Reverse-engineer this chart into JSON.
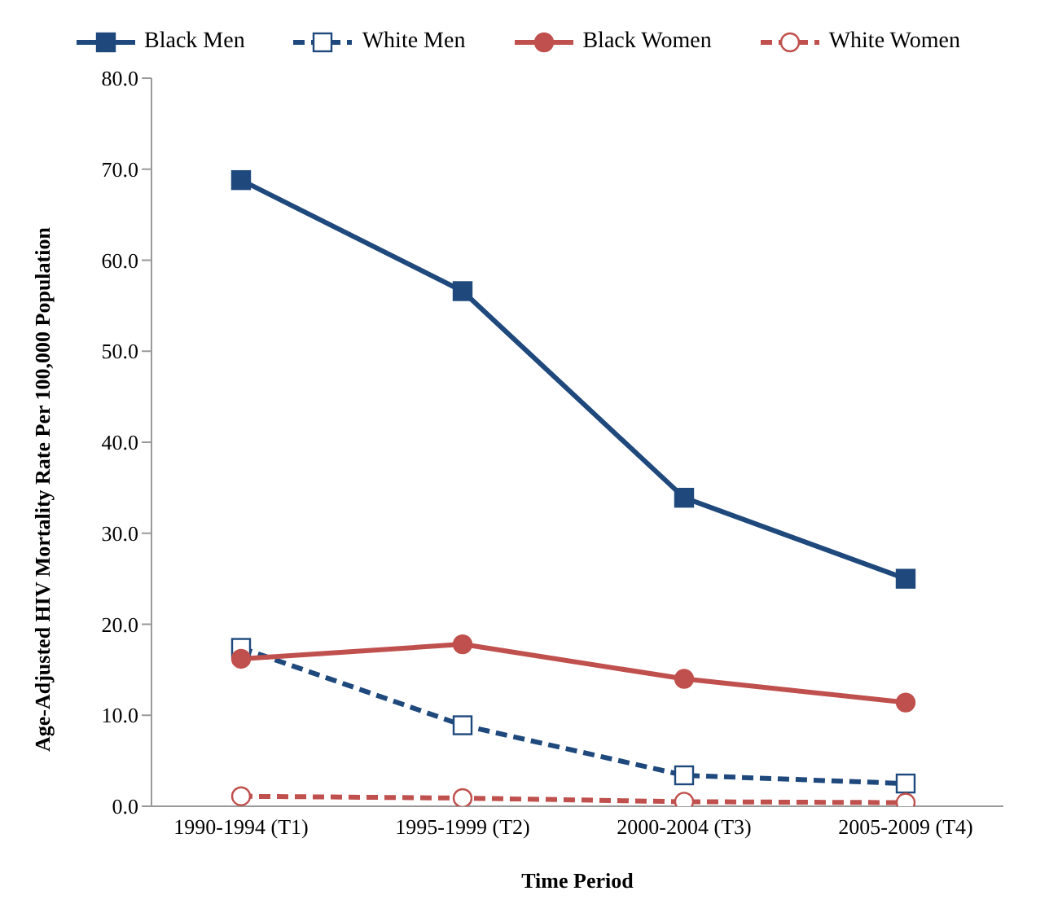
{
  "chart_data": {
    "type": "line",
    "xlabel": "Time Period",
    "ylabel": "Age-Adjusted HIV Mortality Rate Per 100,000 Population",
    "categories": [
      "1990-1994 (T1)",
      "1995-1999 (T2)",
      "2000-2004 (T3)",
      "2005-2009 (T4)"
    ],
    "series": [
      {
        "name": "Black Men",
        "color": "#1f497d",
        "values": [
          68.8,
          56.6,
          33.9,
          25.0
        ],
        "marker": "square",
        "line_style": "solid"
      },
      {
        "name": "White Men",
        "color": "#1f497d",
        "values": [
          17.4,
          8.9,
          3.4,
          2.5
        ],
        "marker": "square",
        "line_style": "dashed"
      },
      {
        "name": "Black Women",
        "color": "#c0504d",
        "values": [
          16.2,
          17.8,
          14.0,
          11.4
        ],
        "marker": "circle",
        "line_style": "solid"
      },
      {
        "name": "White Women",
        "color": "#c0504d",
        "values": [
          1.1,
          0.9,
          0.5,
          0.4
        ],
        "marker": "circle",
        "line_style": "dashed"
      }
    ],
    "ylim": [
      0,
      80
    ],
    "yticks": [
      {
        "value": 0,
        "label": "0.0"
      },
      {
        "value": 10,
        "label": "10.0"
      },
      {
        "value": 20,
        "label": "20.0"
      },
      {
        "value": 30,
        "label": "30.0"
      },
      {
        "value": 40,
        "label": "40.0"
      },
      {
        "value": 50,
        "label": "50.0"
      },
      {
        "value": 60,
        "label": "60.0"
      },
      {
        "value": 70,
        "label": "70.0"
      },
      {
        "value": 80,
        "label": "80.0"
      }
    ],
    "grid": false,
    "legend": "top"
  }
}
